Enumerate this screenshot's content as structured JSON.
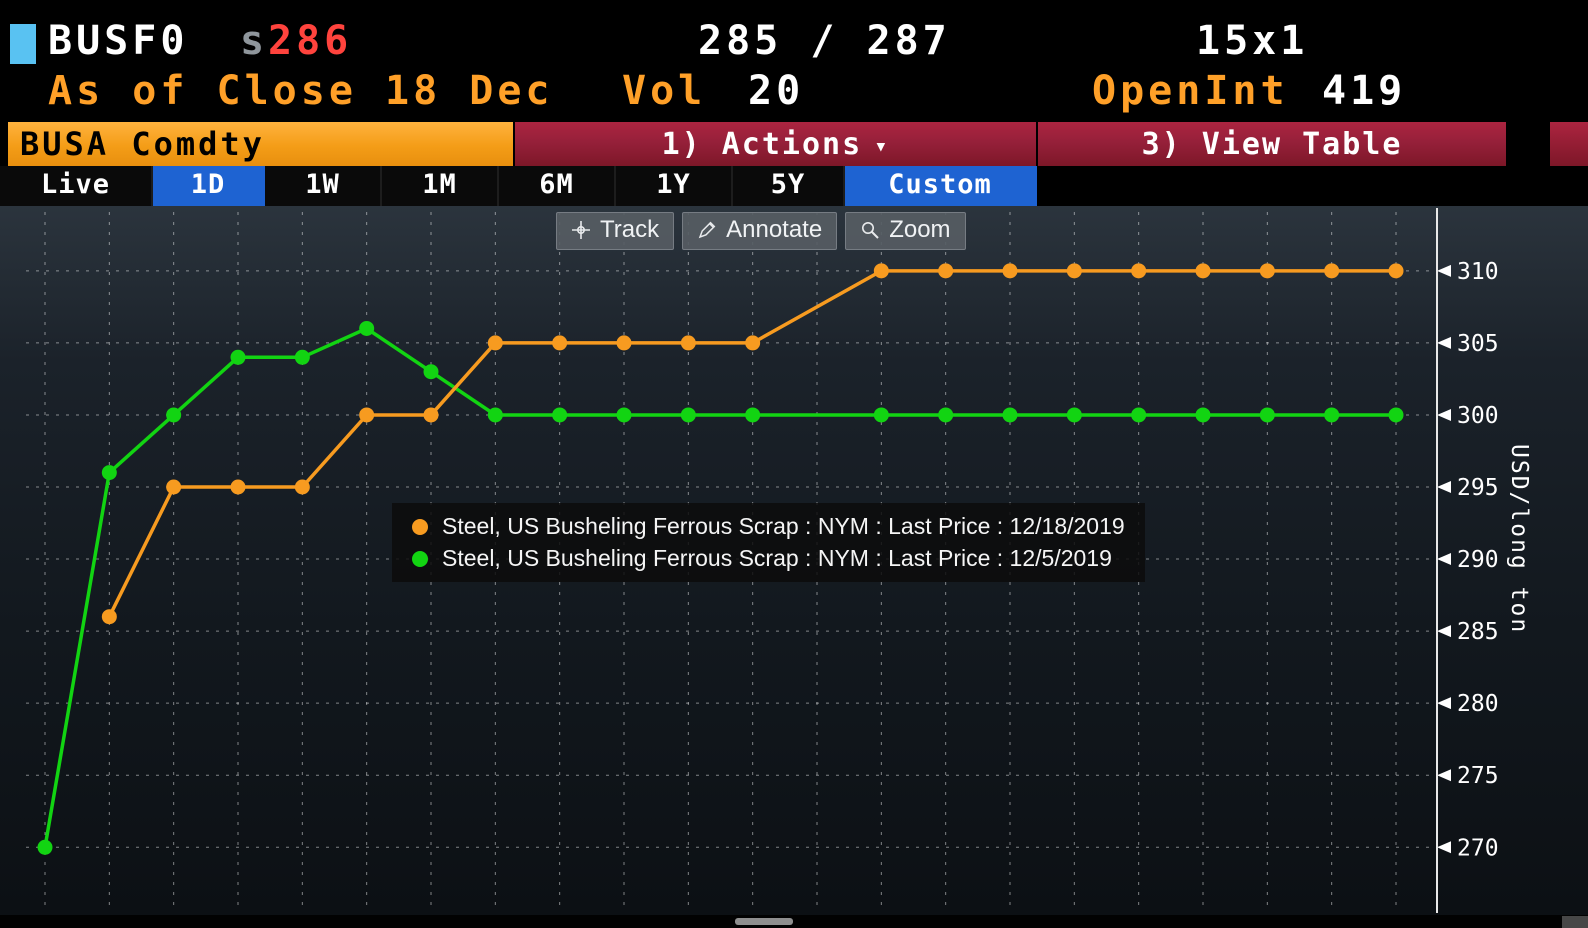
{
  "header": {
    "ticker": "BUSF0",
    "session_indicator": "s",
    "last_price": "286",
    "bid_ask": "285 / 287",
    "lot_size": "15x1",
    "as_of": "As of Close 18 Dec",
    "vol_label": "Vol",
    "vol_value": "20",
    "open_int_label": "OpenInt",
    "open_int_value": "419",
    "colors": {
      "amber": "#ffa028",
      "price_red": "#ff433d",
      "square_blue": "#59c2f2"
    }
  },
  "command_bar": {
    "security": "BUSA Comdty",
    "actions": "1) Actions",
    "view_table": "3) View Table"
  },
  "icons": {
    "caret_down": "▾"
  },
  "range_tabs": [
    {
      "label": "Live",
      "selected": false
    },
    {
      "label": "1D",
      "selected": true
    },
    {
      "label": "1W",
      "selected": false
    },
    {
      "label": "1M",
      "selected": false
    },
    {
      "label": "6M",
      "selected": false
    },
    {
      "label": "1Y",
      "selected": false
    },
    {
      "label": "5Y",
      "selected": false
    },
    {
      "label": "Custom",
      "selected": true
    }
  ],
  "chart_toolbar": {
    "track": "Track",
    "annotate": "Annotate",
    "zoom": "Zoom"
  },
  "legend": [
    {
      "color": "#f79b20",
      "label": "Steel, US Busheling Ferrous Scrap : NYM : Last Price : 12/18/2019"
    },
    {
      "color": "#12d412",
      "label": "Steel, US Busheling Ferrous Scrap : NYM : Last Price : 12/5/2019"
    }
  ],
  "chart_data": {
    "type": "line",
    "xlabel": "",
    "ylabel": "USD/long ton",
    "x_slots": 22,
    "yticks": [
      270,
      275,
      280,
      285,
      290,
      295,
      300,
      305,
      310
    ],
    "ylim": [
      265.3,
      314.5
    ],
    "grid": "dashed-both-axes",
    "legend_position": "center",
    "series": [
      {
        "name": "Steel, US Busheling Ferrous Scrap : NYM : Last Price : 12/18/2019",
        "color": "#f79b20",
        "values": [
          null,
          286,
          295,
          295,
          295,
          300,
          300,
          305,
          305,
          305,
          305,
          305,
          null,
          310,
          310,
          310,
          310,
          310,
          310,
          310,
          310,
          310
        ]
      },
      {
        "name": "Steel, US Busheling Ferrous Scrap : NYM : Last Price : 12/5/2019",
        "color": "#12d412",
        "values": [
          270,
          296,
          300,
          304,
          304,
          306,
          303,
          300,
          300,
          300,
          300,
          300,
          null,
          300,
          300,
          300,
          300,
          300,
          300,
          300,
          300,
          300
        ]
      }
    ]
  }
}
